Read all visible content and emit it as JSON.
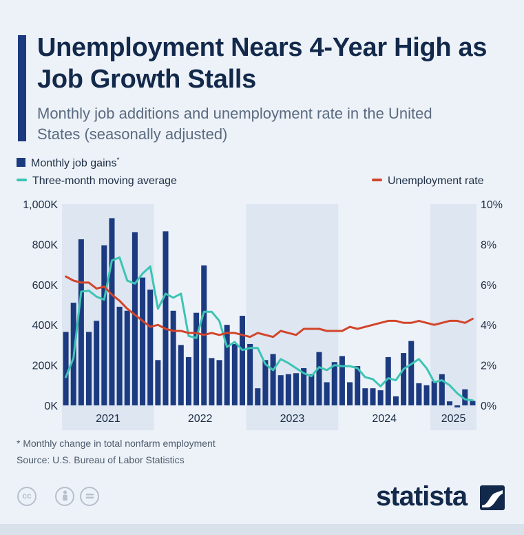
{
  "header": {
    "title": "Unemployment Nears 4-Year High as Job Growth Stalls",
    "subtitle": "Monthly job additions and unemployment rate in the United States (seasonally adjusted)"
  },
  "legend": {
    "bars": "Monthly job gains",
    "bars_marker": "*",
    "moving_avg": "Three-month moving average",
    "unemployment": "Unemployment rate"
  },
  "colors": {
    "bars": "#1c3a80",
    "moving_avg": "#3cc4b4",
    "unemployment": "#d2452b",
    "band": "#dde6f1"
  },
  "chart_data": {
    "type": "bar",
    "title": "Unemployment Nears 4-Year High as Job Growth Stalls",
    "left_axis": {
      "ylim": [
        0,
        1000
      ],
      "unit": "thousands of jobs",
      "ticks": [
        "1,000K",
        "800K",
        "600K",
        "400K",
        "200K",
        "0K"
      ]
    },
    "right_axis": {
      "ylim": [
        0,
        10
      ],
      "unit": "percent",
      "ticks": [
        "10%",
        "8%",
        "6%",
        "4%",
        "2%",
        "0%"
      ]
    },
    "years": [
      "2021",
      "2022",
      "2023",
      "2024",
      "2025"
    ],
    "year_start_index": [
      0,
      12,
      24,
      36,
      48
    ],
    "start_month": "2021-01",
    "series": [
      {
        "name": "Monthly job gains",
        "type": "bar",
        "axis": "left",
        "values": [
          365,
          510,
          825,
          365,
          420,
          795,
          930,
          490,
          470,
          860,
          635,
          575,
          225,
          865,
          470,
          300,
          240,
          460,
          695,
          235,
          225,
          400,
          305,
          445,
          305,
          85,
          225,
          255,
          150,
          155,
          160,
          185,
          155,
          265,
          115,
          215,
          245,
          115,
          195,
          85,
          85,
          75,
          240,
          45,
          260,
          320,
          110,
          100,
          120,
          155,
          20,
          -10,
          80,
          22
        ]
      },
      {
        "name": "Three-month moving average",
        "type": "line",
        "axis": "left",
        "values": [
          140,
          235,
          565,
          570,
          540,
          525,
          720,
          735,
          620,
          605,
          655,
          690,
          480,
          555,
          535,
          555,
          345,
          335,
          465,
          465,
          420,
          290,
          315,
          275,
          285,
          285,
          205,
          175,
          230,
          210,
          185,
          160,
          145,
          190,
          175,
          200,
          195,
          195,
          185,
          140,
          130,
          95,
          135,
          125,
          180,
          205,
          230,
          185,
          115,
          125,
          100,
          60,
          30,
          25
        ]
      },
      {
        "name": "Unemployment rate",
        "type": "line",
        "axis": "right",
        "values": [
          6.4,
          6.2,
          6.1,
          6.1,
          5.8,
          5.9,
          5.5,
          5.2,
          4.8,
          4.5,
          4.2,
          3.9,
          4.0,
          3.8,
          3.7,
          3.7,
          3.6,
          3.6,
          3.5,
          3.6,
          3.5,
          3.6,
          3.6,
          3.5,
          3.4,
          3.6,
          3.5,
          3.4,
          3.7,
          3.6,
          3.5,
          3.8,
          3.8,
          3.8,
          3.7,
          3.7,
          3.7,
          3.9,
          3.8,
          3.9,
          4.0,
          4.1,
          4.2,
          4.2,
          4.1,
          4.1,
          4.2,
          4.1,
          4.0,
          4.1,
          4.2,
          4.2,
          4.1,
          4.3
        ]
      }
    ]
  },
  "footer": {
    "footnote": "* Monthly change in total nonfarm employment",
    "source": "Source: U.S. Bureau of Labor Statistics",
    "brand": "statista",
    "license_icons": [
      "cc-icon",
      "by-icon",
      "nd-icon"
    ]
  }
}
